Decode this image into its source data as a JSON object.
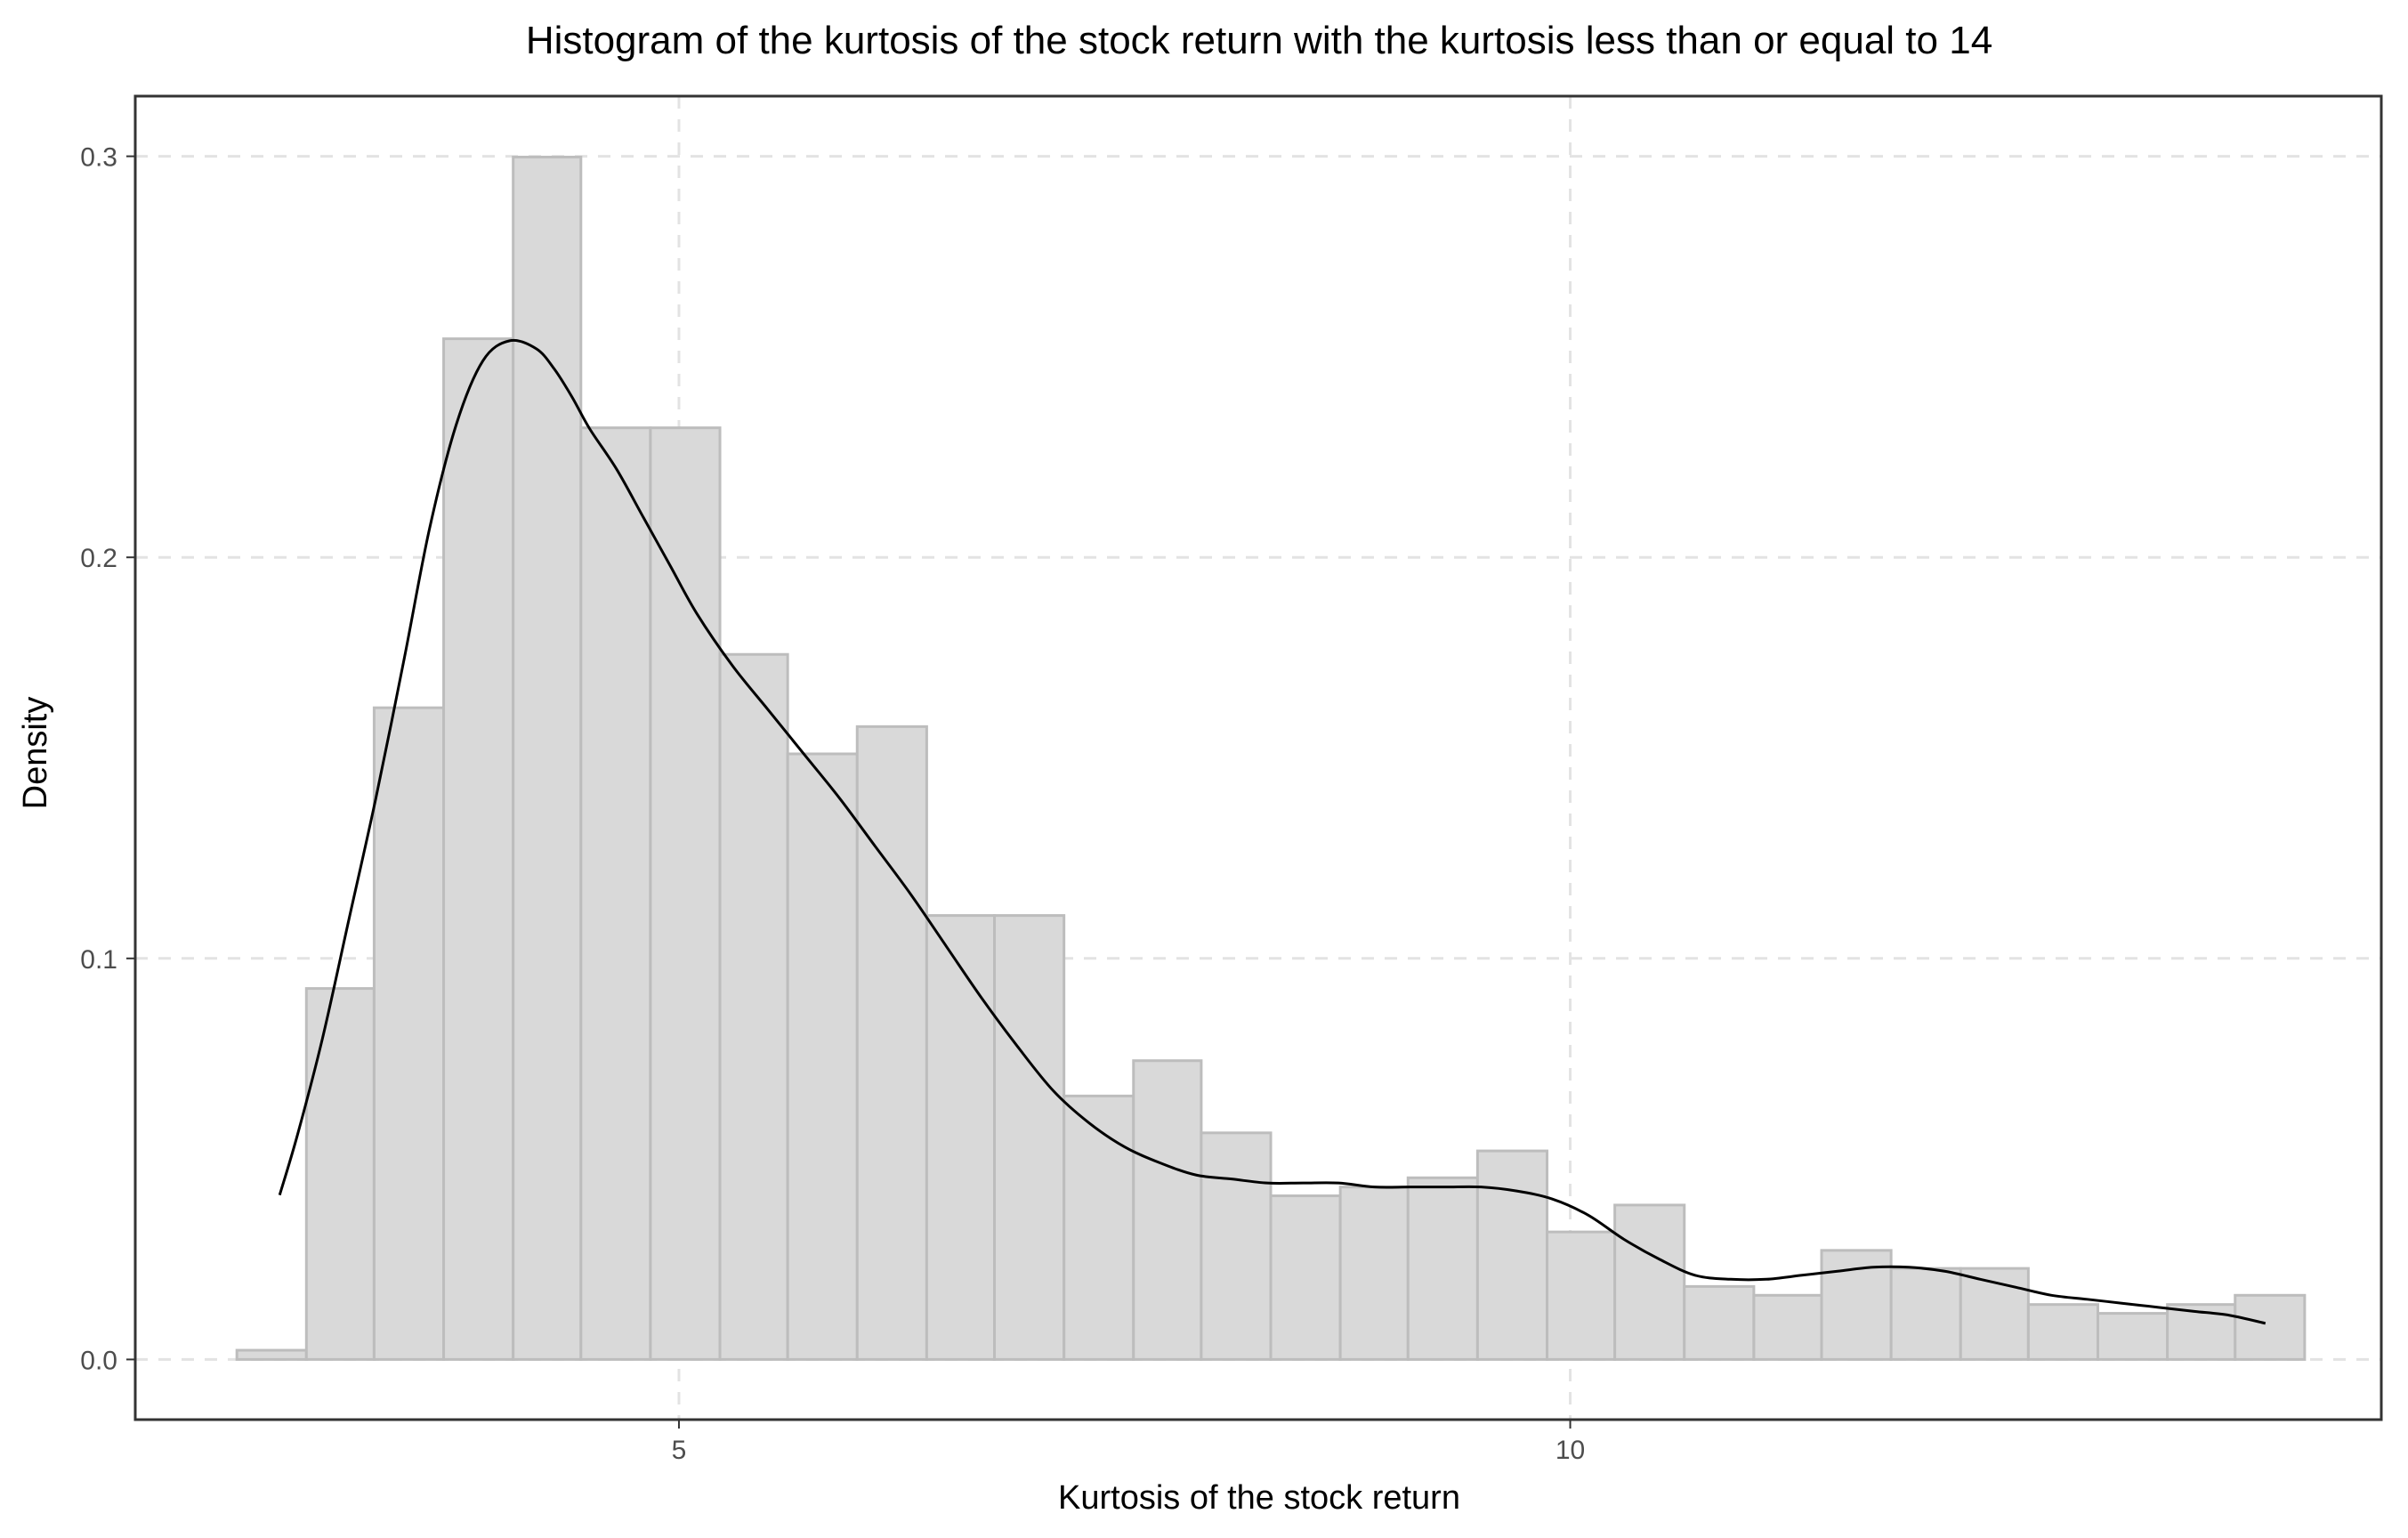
{
  "chart_data": {
    "type": "bar",
    "title": "Histogram of the kurtosis of the stock return with the kurtosis less than or equal to 14",
    "xlabel": "Kurtosis of the stock return",
    "ylabel": "Density",
    "xlim": [
      1.95,
      14.55
    ],
    "ylim": [
      -0.015,
      0.315
    ],
    "x_ticks": [
      5,
      10
    ],
    "x_tick_labels": [
      "5",
      "10"
    ],
    "y_ticks": [
      0,
      0.1,
      0.2,
      0.3
    ],
    "y_tick_labels": [
      "0.0",
      "0.1",
      "0.2",
      "0.3"
    ],
    "grid": true,
    "bin_width": 0.3866,
    "bins": [
      {
        "x0": 2.52,
        "x1": 2.91,
        "density": 0.0023
      },
      {
        "x0": 2.91,
        "x1": 3.29,
        "density": 0.0925
      },
      {
        "x0": 3.29,
        "x1": 3.68,
        "density": 0.1625
      },
      {
        "x0": 3.68,
        "x1": 4.07,
        "density": 0.2545
      },
      {
        "x0": 4.07,
        "x1": 4.45,
        "density": 0.2998
      },
      {
        "x0": 4.45,
        "x1": 4.84,
        "density": 0.2323
      },
      {
        "x0": 4.84,
        "x1": 5.23,
        "density": 0.2323
      },
      {
        "x0": 5.23,
        "x1": 5.61,
        "density": 0.1758
      },
      {
        "x0": 5.61,
        "x1": 6.0,
        "density": 0.151
      },
      {
        "x0": 6.0,
        "x1": 6.39,
        "density": 0.1578
      },
      {
        "x0": 6.39,
        "x1": 6.77,
        "density": 0.1107
      },
      {
        "x0": 6.77,
        "x1": 7.16,
        "density": 0.1107
      },
      {
        "x0": 7.16,
        "x1": 7.55,
        "density": 0.0657
      },
      {
        "x0": 7.55,
        "x1": 7.93,
        "density": 0.0745
      },
      {
        "x0": 7.93,
        "x1": 8.32,
        "density": 0.0565
      },
      {
        "x0": 8.32,
        "x1": 8.71,
        "density": 0.0408
      },
      {
        "x0": 8.71,
        "x1": 9.09,
        "density": 0.043
      },
      {
        "x0": 9.09,
        "x1": 9.48,
        "density": 0.0453
      },
      {
        "x0": 9.48,
        "x1": 9.87,
        "density": 0.052
      },
      {
        "x0": 9.87,
        "x1": 10.25,
        "density": 0.0318
      },
      {
        "x0": 10.25,
        "x1": 10.64,
        "density": 0.0385
      },
      {
        "x0": 10.64,
        "x1": 11.03,
        "density": 0.0182
      },
      {
        "x0": 11.03,
        "x1": 11.41,
        "density": 0.016
      },
      {
        "x0": 11.41,
        "x1": 11.8,
        "density": 0.0272
      },
      {
        "x0": 11.8,
        "x1": 12.19,
        "density": 0.0227
      },
      {
        "x0": 12.19,
        "x1": 12.57,
        "density": 0.0227
      },
      {
        "x0": 12.57,
        "x1": 12.96,
        "density": 0.0137
      },
      {
        "x0": 12.96,
        "x1": 13.35,
        "density": 0.0115
      },
      {
        "x0": 13.35,
        "x1": 13.73,
        "density": 0.0137
      },
      {
        "x0": 13.73,
        "x1": 14.12,
        "density": 0.016
      }
    ],
    "density_curve": {
      "x": [
        2.76,
        2.86,
        3.0,
        3.15,
        3.3,
        3.46,
        3.6,
        3.75,
        3.9,
        4.05,
        4.2,
        4.3,
        4.4,
        4.5,
        4.65,
        4.8,
        4.95,
        5.1,
        5.3,
        5.5,
        5.7,
        5.9,
        6.1,
        6.3,
        6.5,
        6.7,
        6.9,
        7.1,
        7.3,
        7.5,
        7.7,
        7.9,
        8.1,
        8.3,
        8.5,
        8.7,
        8.9,
        9.1,
        9.3,
        9.5,
        9.7,
        9.9,
        10.1,
        10.3,
        10.5,
        10.7,
        10.9,
        11.1,
        11.3,
        11.5,
        11.7,
        11.9,
        12.1,
        12.3,
        12.5,
        12.7,
        12.9,
        13.1,
        13.3,
        13.5,
        13.7,
        13.9
      ],
      "y": [
        0.041,
        0.056,
        0.08,
        0.11,
        0.14,
        0.175,
        0.207,
        0.233,
        0.249,
        0.254,
        0.252,
        0.247,
        0.24,
        0.232,
        0.222,
        0.21,
        0.198,
        0.186,
        0.173,
        0.162,
        0.151,
        0.14,
        0.128,
        0.116,
        0.103,
        0.09,
        0.078,
        0.067,
        0.059,
        0.053,
        0.049,
        0.046,
        0.045,
        0.044,
        0.044,
        0.044,
        0.043,
        0.043,
        0.043,
        0.043,
        0.042,
        0.04,
        0.036,
        0.03,
        0.025,
        0.021,
        0.02,
        0.02,
        0.021,
        0.022,
        0.023,
        0.023,
        0.022,
        0.02,
        0.018,
        0.016,
        0.015,
        0.014,
        0.013,
        0.012,
        0.011,
        0.009
      ]
    }
  }
}
